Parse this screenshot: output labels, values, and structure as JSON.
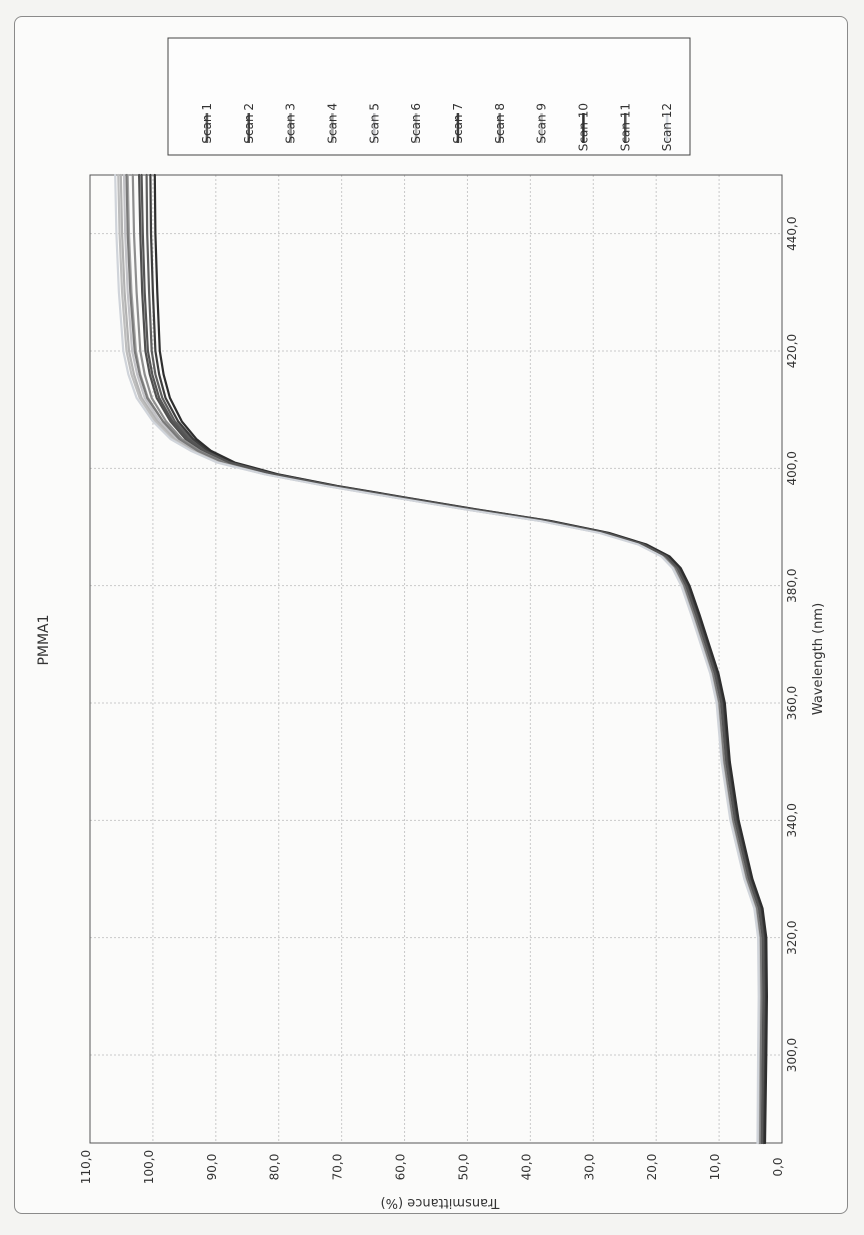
{
  "chart_data": {
    "type": "line",
    "orientation": "rotated-90-clockwise",
    "title": "PMMA1",
    "xlabel": "Wavelength (nm)",
    "ylabel": "Transmittance (%)",
    "xlim": [
      285,
      450
    ],
    "ylim": [
      0,
      110
    ],
    "xticks": [
      "300,0",
      "320,0",
      "340,0",
      "360,0",
      "380,0",
      "400,0",
      "420,0",
      "440,0"
    ],
    "yticks": [
      "0,0",
      "10,0",
      "20,0",
      "30,0",
      "40,0",
      "50,0",
      "60,0",
      "70,0",
      "80,0",
      "90,0",
      "100,0",
      "110,0"
    ],
    "grid": true,
    "legend_position": "top-right",
    "x": [
      285,
      300,
      310,
      320,
      325,
      330,
      340,
      350,
      360,
      365,
      370,
      375,
      380,
      383,
      385,
      387,
      389,
      391,
      393,
      395,
      397,
      399,
      401,
      403,
      405,
      408,
      412,
      416,
      420,
      430,
      440,
      450
    ],
    "series": [
      {
        "name": "Scan 1",
        "color": "#5f5f5f",
        "values": [
          3.0,
          2.8,
          2.7,
          2.8,
          3.4,
          5.0,
          7.2,
          8.6,
          9.4,
          10.4,
          11.9,
          13.4,
          15.0,
          16.4,
          18.2,
          21.8,
          27.8,
          37.0,
          48.8,
          60.0,
          71.0,
          80.5,
          87.5,
          91.5,
          94.0,
          96.5,
          98.5,
          99.6,
          100.2,
          100.6,
          100.9,
          101.0
        ]
      },
      {
        "name": "Scan 2",
        "color": "#4f4f4f",
        "values": [
          3.4,
          3.2,
          3.1,
          3.2,
          3.8,
          5.4,
          7.6,
          9.0,
          9.8,
          10.8,
          12.3,
          13.8,
          15.4,
          16.8,
          18.6,
          22.2,
          28.2,
          37.4,
          49.2,
          60.4,
          71.4,
          81.0,
          88.0,
          92.0,
          94.8,
          97.2,
          99.4,
          100.5,
          101.2,
          101.7,
          102.0,
          102.2
        ]
      },
      {
        "name": "Scan 3",
        "color": "#8e8e8e",
        "values": [
          3.5,
          3.4,
          3.3,
          3.4,
          4.0,
          5.6,
          7.8,
          9.2,
          10.0,
          11.0,
          12.5,
          14.0,
          15.6,
          17.0,
          18.8,
          22.4,
          28.5,
          37.8,
          49.6,
          60.8,
          71.8,
          81.5,
          88.6,
          92.6,
          95.4,
          97.9,
          100.2,
          101.3,
          102.0,
          102.6,
          103.0,
          103.2
        ]
      },
      {
        "name": "Scan 4",
        "color": "#a4a4a4",
        "values": [
          3.6,
          3.5,
          3.4,
          3.5,
          4.1,
          5.7,
          7.9,
          9.3,
          10.1,
          11.1,
          12.6,
          14.1,
          15.7,
          17.1,
          18.9,
          22.5,
          28.7,
          38.0,
          49.9,
          61.1,
          72.1,
          81.8,
          89.0,
          93.0,
          95.9,
          98.4,
          100.8,
          102.0,
          102.7,
          103.4,
          103.8,
          104.0
        ]
      },
      {
        "name": "Scan 5",
        "color": "#c2c2c6",
        "values": [
          3.7,
          3.6,
          3.5,
          3.6,
          4.2,
          5.8,
          8.0,
          9.4,
          10.2,
          11.2,
          12.7,
          14.2,
          15.8,
          17.2,
          19.0,
          22.6,
          28.8,
          38.2,
          50.1,
          61.3,
          72.3,
          82.0,
          89.3,
          93.4,
          96.3,
          98.9,
          101.3,
          102.5,
          103.3,
          104.0,
          104.4,
          104.6
        ]
      },
      {
        "name": "Scan 6",
        "color": "#b2b2b2",
        "values": [
          3.7,
          3.6,
          3.5,
          3.6,
          4.2,
          5.8,
          8.0,
          9.4,
          10.2,
          11.2,
          12.7,
          14.2,
          15.8,
          17.2,
          19.0,
          22.6,
          28.8,
          38.2,
          50.1,
          61.3,
          72.3,
          82.1,
          89.4,
          93.6,
          96.6,
          99.3,
          101.8,
          103.0,
          103.8,
          104.5,
          104.9,
          105.1
        ]
      },
      {
        "name": "Scan 7",
        "color": "#3e3e3e",
        "values": [
          2.9,
          2.7,
          2.6,
          2.7,
          3.3,
          4.9,
          7.1,
          8.5,
          9.3,
          10.3,
          11.8,
          13.3,
          14.9,
          16.3,
          18.1,
          21.7,
          27.7,
          36.9,
          48.7,
          59.9,
          70.9,
          80.4,
          87.3,
          91.2,
          93.6,
          96.0,
          98.0,
          99.0,
          99.6,
          100.0,
          100.3,
          100.4
        ]
      },
      {
        "name": "Scan 8",
        "color": "#7a7a7a",
        "values": [
          3.6,
          3.4,
          3.3,
          3.4,
          4.0,
          5.6,
          7.8,
          9.2,
          10.0,
          11.0,
          12.5,
          14.0,
          15.6,
          17.0,
          18.8,
          22.4,
          28.5,
          37.8,
          49.6,
          60.8,
          71.8,
          81.6,
          88.8,
          92.9,
          95.8,
          98.4,
          100.9,
          102.1,
          102.9,
          103.6,
          104.0,
          104.2
        ]
      },
      {
        "name": "Scan 9",
        "color": "#bdbdbd",
        "values": [
          3.8,
          3.7,
          3.6,
          3.7,
          4.3,
          5.9,
          8.1,
          9.5,
          10.3,
          11.3,
          12.8,
          14.3,
          15.9,
          17.3,
          19.1,
          22.7,
          28.9,
          38.3,
          50.2,
          61.4,
          72.4,
          82.2,
          89.6,
          93.8,
          96.9,
          99.6,
          102.1,
          103.4,
          104.2,
          104.9,
          105.3,
          105.5
        ]
      },
      {
        "name": "Scan 10",
        "color": "#2e2e2e",
        "values": [
          2.7,
          2.5,
          2.4,
          2.5,
          3.1,
          4.7,
          6.9,
          8.3,
          9.1,
          10.1,
          11.6,
          13.1,
          14.7,
          16.1,
          17.9,
          21.5,
          27.5,
          36.7,
          48.5,
          59.7,
          70.7,
          80.2,
          87.0,
          90.8,
          93.1,
          95.4,
          97.3,
          98.3,
          98.9,
          99.3,
          99.6,
          99.7
        ]
      },
      {
        "name": "Scan 11",
        "color": "#555555",
        "values": [
          3.2,
          3.0,
          2.9,
          3.0,
          3.6,
          5.2,
          7.4,
          8.8,
          9.6,
          10.6,
          12.1,
          13.6,
          15.2,
          16.6,
          18.4,
          22.0,
          28.0,
          37.2,
          49.0,
          60.2,
          71.2,
          80.8,
          87.8,
          91.8,
          94.4,
          96.9,
          99.0,
          100.1,
          100.8,
          101.3,
          101.6,
          101.8
        ]
      },
      {
        "name": "Scan 12",
        "color": "#d0d4da",
        "values": [
          3.9,
          3.8,
          3.7,
          3.8,
          4.4,
          6.0,
          8.2,
          9.6,
          10.4,
          11.4,
          12.9,
          14.4,
          16.0,
          17.4,
          19.2,
          22.8,
          29.0,
          38.4,
          50.3,
          61.5,
          72.5,
          82.3,
          89.8,
          94.0,
          97.2,
          100.0,
          102.6,
          103.9,
          104.7,
          105.4,
          105.8,
          106.0
        ]
      }
    ]
  }
}
